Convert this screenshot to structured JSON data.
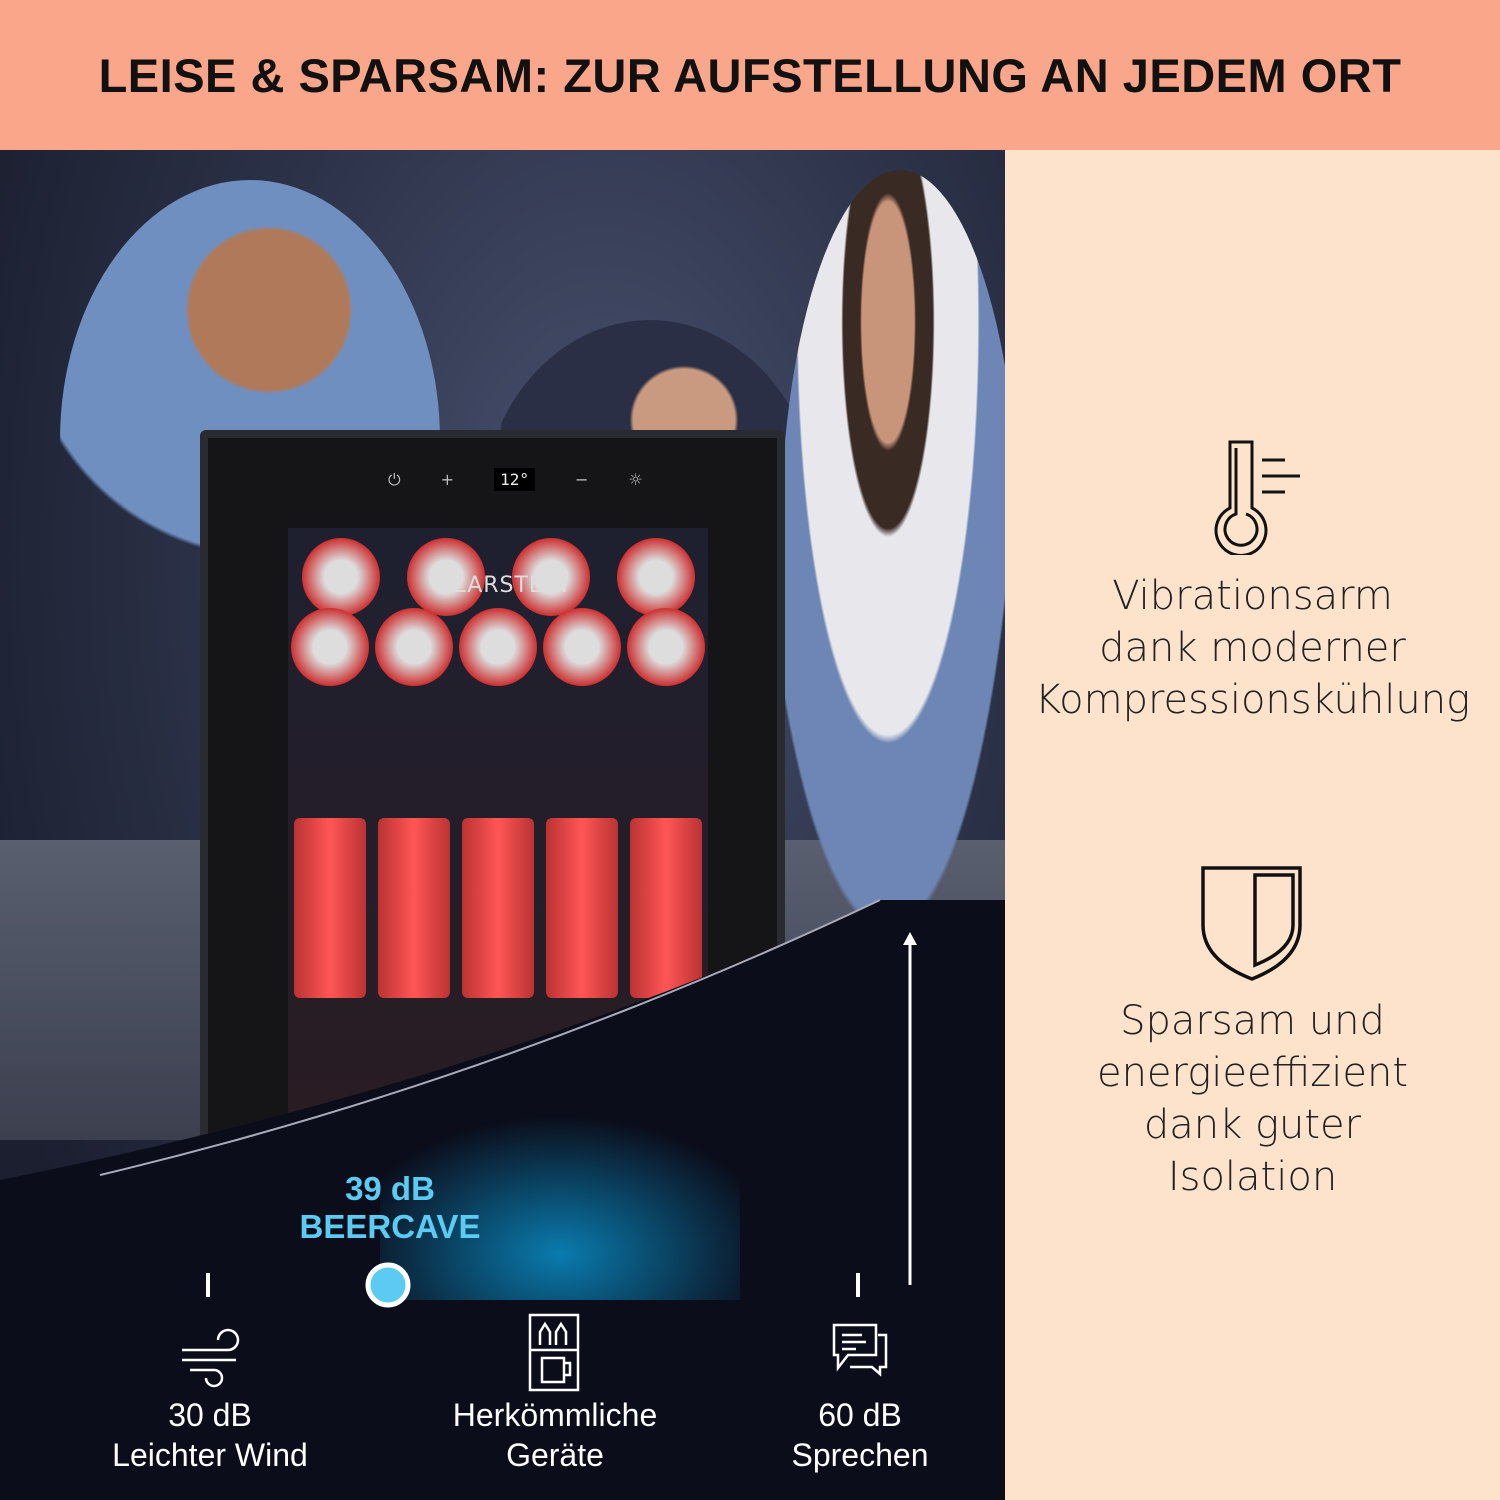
{
  "header": {
    "title": "LEISE & SPARSAM: ZUR AUFSTELLUNG AN JEDEM ORT"
  },
  "product": {
    "brand": "KLARSTEIN",
    "display_temperature": "12°",
    "panel_icons": [
      "power-icon",
      "plus-icon",
      "minus-icon",
      "light-icon"
    ]
  },
  "noise_scale": {
    "unit": "dB",
    "highlight": {
      "value": "39 dB",
      "label": "BEERCAVE",
      "color": "#5CCBF3"
    },
    "markers": [
      {
        "value": "30 dB",
        "label": "Leichter Wind",
        "icon": "wind-icon"
      },
      {
        "value": "",
        "label": "Herkömmliche Geräte",
        "icon": "fridge-appliance-icon"
      },
      {
        "value": "60 dB",
        "label": "Sprechen",
        "icon": "speech-bubbles-icon"
      }
    ]
  },
  "features": [
    {
      "icon": "thermometer-icon",
      "lines": [
        "Vibrationsarm",
        "dank moderner",
        "Kompressionskühlung"
      ]
    },
    {
      "icon": "shield-icon",
      "lines": [
        "Sparsam und",
        "energieeffizient",
        "dank guter",
        "Isolation"
      ]
    }
  ],
  "colors": {
    "header_bg": "#F9A68B",
    "panel_bg": "#FDE3CC",
    "accent": "#5CCBF3"
  }
}
